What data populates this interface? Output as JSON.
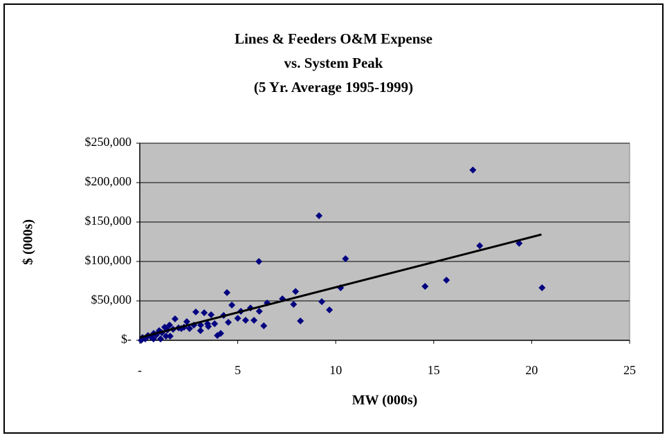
{
  "chart_data": {
    "type": "scatter",
    "title": [
      "Lines & Feeders O&M Expense",
      "vs. System Peak",
      "(5 Yr. Average 1995-1999)"
    ],
    "x_label": "MW (000s)",
    "y_label": "$ (000s)",
    "xlim": [
      0,
      25
    ],
    "ylim": [
      0,
      250000
    ],
    "xticks": [
      {
        "value": 0,
        "label": "-"
      },
      5,
      10,
      15,
      20,
      25
    ],
    "yticks": [
      {
        "value": 0,
        "label": "$-"
      },
      {
        "value": 50000,
        "label": "$50,000"
      },
      {
        "value": 100000,
        "label": "$100,000"
      },
      {
        "value": 150000,
        "label": "$150,000"
      },
      {
        "value": 200000,
        "label": "$200,000"
      },
      {
        "value": 250000,
        "label": "$250,000"
      }
    ],
    "grid": true,
    "plot_background": "#c0c0c0",
    "series": [
      {
        "color": "#000080",
        "x": [
          17.0,
          9.15,
          6.08,
          10.5,
          17.35,
          19.36,
          20.53,
          10.25,
          14.56,
          15.65,
          4.45,
          7.28,
          7.95,
          7.85,
          9.29,
          9.68,
          8.2,
          6.5,
          6.33,
          6.1,
          5.65,
          5.4,
          5.83,
          5.16,
          5.0,
          4.7,
          4.28,
          4.52,
          4.13,
          3.96,
          3.64,
          3.29,
          2.86,
          2.76,
          2.4,
          2.12,
          1.8,
          1.52,
          1.27,
          0.99,
          0.71,
          0.42,
          0.14,
          0.28,
          0.57,
          0.85,
          1.13,
          1.41,
          1.7,
          1.98,
          2.26,
          2.54,
          3.11,
          3.46,
          3.82,
          1.55,
          3.1,
          3.5,
          1.34,
          1.06,
          0.7,
          0.07
        ],
        "values": [
          216000,
          158000,
          100000,
          103500,
          120000,
          123000,
          66700,
          66700,
          68400,
          76300,
          60500,
          52600,
          62000,
          45600,
          49000,
          38600,
          24600,
          47400,
          18400,
          36800,
          41000,
          25400,
          25400,
          36800,
          28000,
          44700,
          31600,
          22800,
          8800,
          6100,
          32500,
          35000,
          36000,
          19300,
          23700,
          14900,
          27200,
          19300,
          16700,
          12300,
          8800,
          6100,
          3500,
          1800,
          4400,
          7000,
          9600,
          13200,
          14000,
          15800,
          16700,
          14900,
          19300,
          21000,
          21000,
          5300,
          12300,
          17500,
          5300,
          1800,
          1800,
          0
        ]
      }
    ],
    "trendline": {
      "color": "#000000",
      "x": [
        0,
        20.5
      ],
      "values": [
        3500,
        134200
      ]
    }
  }
}
